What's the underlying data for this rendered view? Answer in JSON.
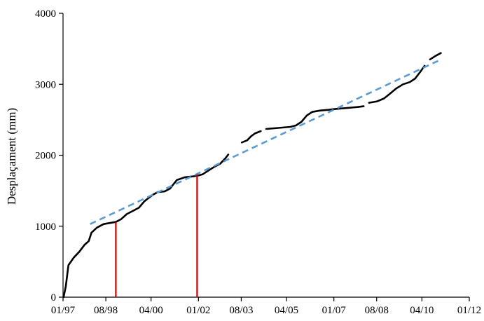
{
  "chart_data": {
    "type": "line",
    "ylabel": "Desplaçament (mm)",
    "xlabel": "",
    "ylim": [
      0,
      4000
    ],
    "y_ticks": [
      "0",
      "1000",
      "2000",
      "3000",
      "4000"
    ],
    "x_ticks": [
      "01/97",
      "08/98",
      "04/00",
      "01/02",
      "08/03",
      "04/05",
      "01/07",
      "08/08",
      "04/10",
      "01/12"
    ],
    "x_tick_values": [
      1997.0,
      1998.58,
      2000.25,
      2002.0,
      2003.58,
      2005.25,
      2007.0,
      2008.58,
      2010.25,
      2012.0
    ],
    "xlim": [
      1997.0,
      2012.0
    ],
    "series": [
      {
        "style": "measured",
        "color": "#000000",
        "segments": [
          [
            [
              1997.02,
              0
            ],
            [
              1997.1,
              150
            ],
            [
              1997.2,
              450
            ],
            [
              1997.4,
              560
            ],
            [
              1997.6,
              640
            ],
            [
              1997.8,
              740
            ],
            [
              1997.95,
              790
            ],
            [
              1998.05,
              910
            ],
            [
              1998.25,
              980
            ],
            [
              1998.5,
              1030
            ],
            [
              1998.8,
              1050
            ],
            [
              1998.95,
              1060
            ],
            [
              1999.15,
              1100
            ],
            [
              1999.35,
              1170
            ],
            [
              1999.6,
              1220
            ],
            [
              1999.8,
              1260
            ],
            [
              2000.0,
              1350
            ],
            [
              2000.3,
              1440
            ],
            [
              2000.5,
              1480
            ],
            [
              2000.75,
              1490
            ],
            [
              2000.95,
              1530
            ],
            [
              2001.2,
              1650
            ],
            [
              2001.5,
              1690
            ],
            [
              2001.85,
              1705
            ],
            [
              2002.0,
              1715
            ],
            [
              2002.15,
              1730
            ],
            [
              2002.35,
              1780
            ],
            [
              2002.6,
              1840
            ],
            [
              2002.8,
              1880
            ],
            [
              2003.0,
              1960
            ],
            [
              2003.1,
              2010
            ]
          ],
          [
            [
              2003.6,
              2180
            ],
            [
              2003.8,
              2210
            ],
            [
              2003.95,
              2270
            ],
            [
              2004.1,
              2310
            ],
            [
              2004.3,
              2340
            ]
          ],
          [
            [
              2004.5,
              2370
            ],
            [
              2004.8,
              2380
            ],
            [
              2005.1,
              2390
            ],
            [
              2005.4,
              2400
            ],
            [
              2005.6,
              2420
            ],
            [
              2005.8,
              2470
            ],
            [
              2006.0,
              2560
            ],
            [
              2006.2,
              2610
            ],
            [
              2006.5,
              2630
            ],
            [
              2006.8,
              2640
            ],
            [
              2007.0,
              2650
            ],
            [
              2007.3,
              2660
            ],
            [
              2007.6,
              2670
            ],
            [
              2007.9,
              2680
            ],
            [
              2008.1,
              2690
            ]
          ],
          [
            [
              2008.3,
              2740
            ],
            [
              2008.6,
              2760
            ],
            [
              2008.85,
              2800
            ],
            [
              2009.05,
              2860
            ],
            [
              2009.3,
              2940
            ],
            [
              2009.55,
              3000
            ],
            [
              2009.8,
              3030
            ],
            [
              2010.0,
              3080
            ],
            [
              2010.2,
              3180
            ],
            [
              2010.35,
              3260
            ]
          ],
          [
            [
              2010.55,
              3350
            ],
            [
              2010.75,
              3400
            ],
            [
              2010.95,
              3440
            ]
          ]
        ]
      },
      {
        "style": "trend",
        "color": "#5b9bd5",
        "points": [
          [
            1998.0,
            1030
          ],
          [
            2010.85,
            3330
          ]
        ]
      }
    ],
    "markers": {
      "color": "#cc0000",
      "lines": [
        [
          1998.95,
          1055
        ],
        [
          2001.95,
          1730
        ]
      ]
    }
  }
}
